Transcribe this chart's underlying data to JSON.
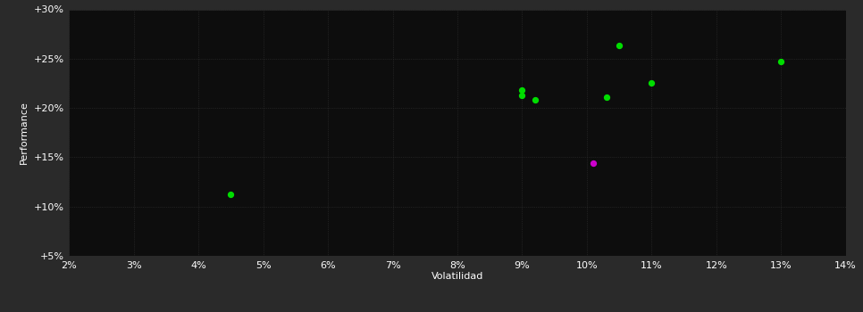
{
  "background_color": "#2a2a2a",
  "plot_bg_color": "#0d0d0d",
  "grid_color": "#333333",
  "text_color": "#ffffff",
  "xlabel": "Volatilidad",
  "ylabel": "Performance",
  "xlim": [
    0.02,
    0.14
  ],
  "ylim": [
    0.05,
    0.3
  ],
  "xticks": [
    0.02,
    0.03,
    0.04,
    0.05,
    0.06,
    0.07,
    0.08,
    0.09,
    0.1,
    0.11,
    0.12,
    0.13,
    0.14
  ],
  "yticks": [
    0.05,
    0.1,
    0.15,
    0.2,
    0.25,
    0.3
  ],
  "green_points": [
    [
      0.045,
      0.112
    ],
    [
      0.09,
      0.218
    ],
    [
      0.09,
      0.213
    ],
    [
      0.092,
      0.208
    ],
    [
      0.103,
      0.211
    ],
    [
      0.105,
      0.263
    ],
    [
      0.11,
      0.225
    ],
    [
      0.13,
      0.247
    ]
  ],
  "magenta_points": [
    [
      0.101,
      0.144
    ]
  ],
  "green_color": "#00dd00",
  "magenta_color": "#cc00cc",
  "point_size": 18
}
